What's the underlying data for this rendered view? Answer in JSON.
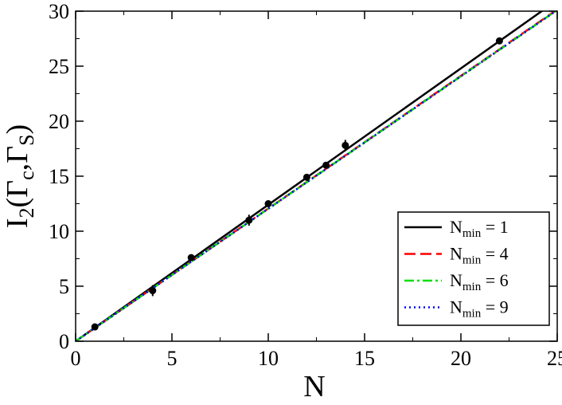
{
  "chart_data": {
    "type": "line",
    "x_label": "N",
    "y_label": [
      "I",
      "2",
      "(Γ",
      "c",
      ",Γ",
      "S",
      ")"
    ],
    "xlim": [
      0,
      25
    ],
    "ylim": [
      0,
      30
    ],
    "xticks": [
      0,
      5,
      10,
      15,
      20,
      25
    ],
    "yticks": [
      0,
      5,
      10,
      15,
      20,
      25,
      30
    ],
    "xminorticks": [
      2.5,
      7.5,
      12.5,
      17.5,
      22.5
    ],
    "yminorticks": [
      2.5,
      7.5,
      12.5,
      17.5,
      22.5,
      27.5
    ],
    "legend": "lower right",
    "series": [
      {
        "type": "line",
        "name": [
          "N",
          "min",
          " = 1"
        ],
        "color": "#000000",
        "dash": "solid",
        "x": [
          0,
          25
        ],
        "values": [
          0,
          31.0
        ]
      },
      {
        "type": "line",
        "name": [
          "N",
          "min",
          " = 4"
        ],
        "color": "#ff0000",
        "dash": "dashed",
        "x": [
          0,
          25
        ],
        "values": [
          0,
          30.15
        ]
      },
      {
        "type": "line",
        "name": [
          "N",
          "min",
          " = 6"
        ],
        "color": "#00dd00",
        "dash": "dashdot",
        "x": [
          0,
          25
        ],
        "values": [
          0,
          30.1
        ]
      },
      {
        "type": "line",
        "name": [
          "N",
          "min",
          " = 9"
        ],
        "color": "#0000ff",
        "dash": "dotted",
        "x": [
          0,
          25
        ],
        "values": [
          0,
          30.1
        ]
      },
      {
        "type": "errorbar",
        "color": "#000000",
        "x": [
          1,
          4,
          6,
          9,
          10,
          12,
          13,
          14,
          22
        ],
        "values": [
          1.3,
          4.6,
          7.6,
          11.0,
          12.5,
          14.9,
          16.0,
          17.8,
          27.3
        ],
        "errors": [
          0.2,
          0.5,
          0.2,
          0.5,
          0.2,
          0.3,
          0.2,
          0.5,
          0.3
        ]
      }
    ]
  }
}
